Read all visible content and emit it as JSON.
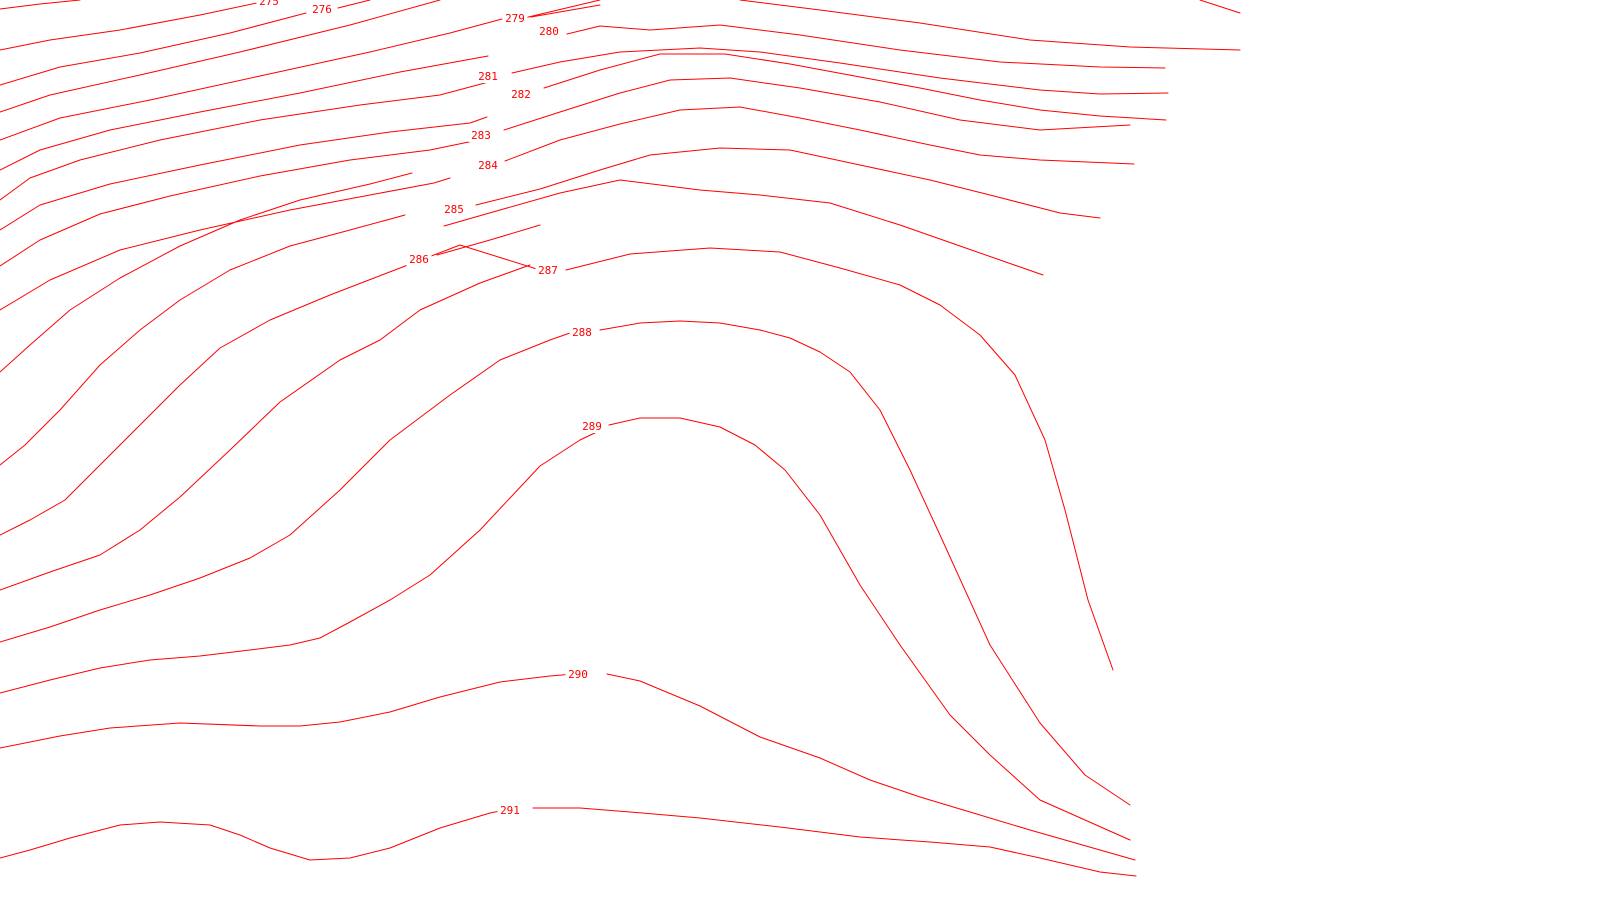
{
  "map": {
    "type": "contour-map",
    "line_color": "#ff0000",
    "background_color": "#ffffff",
    "contour_levels": [
      "275",
      "276",
      "279",
      "280",
      "281",
      "282",
      "283",
      "284",
      "285",
      "286",
      "287",
      "288",
      "289",
      "290",
      "291"
    ]
  }
}
